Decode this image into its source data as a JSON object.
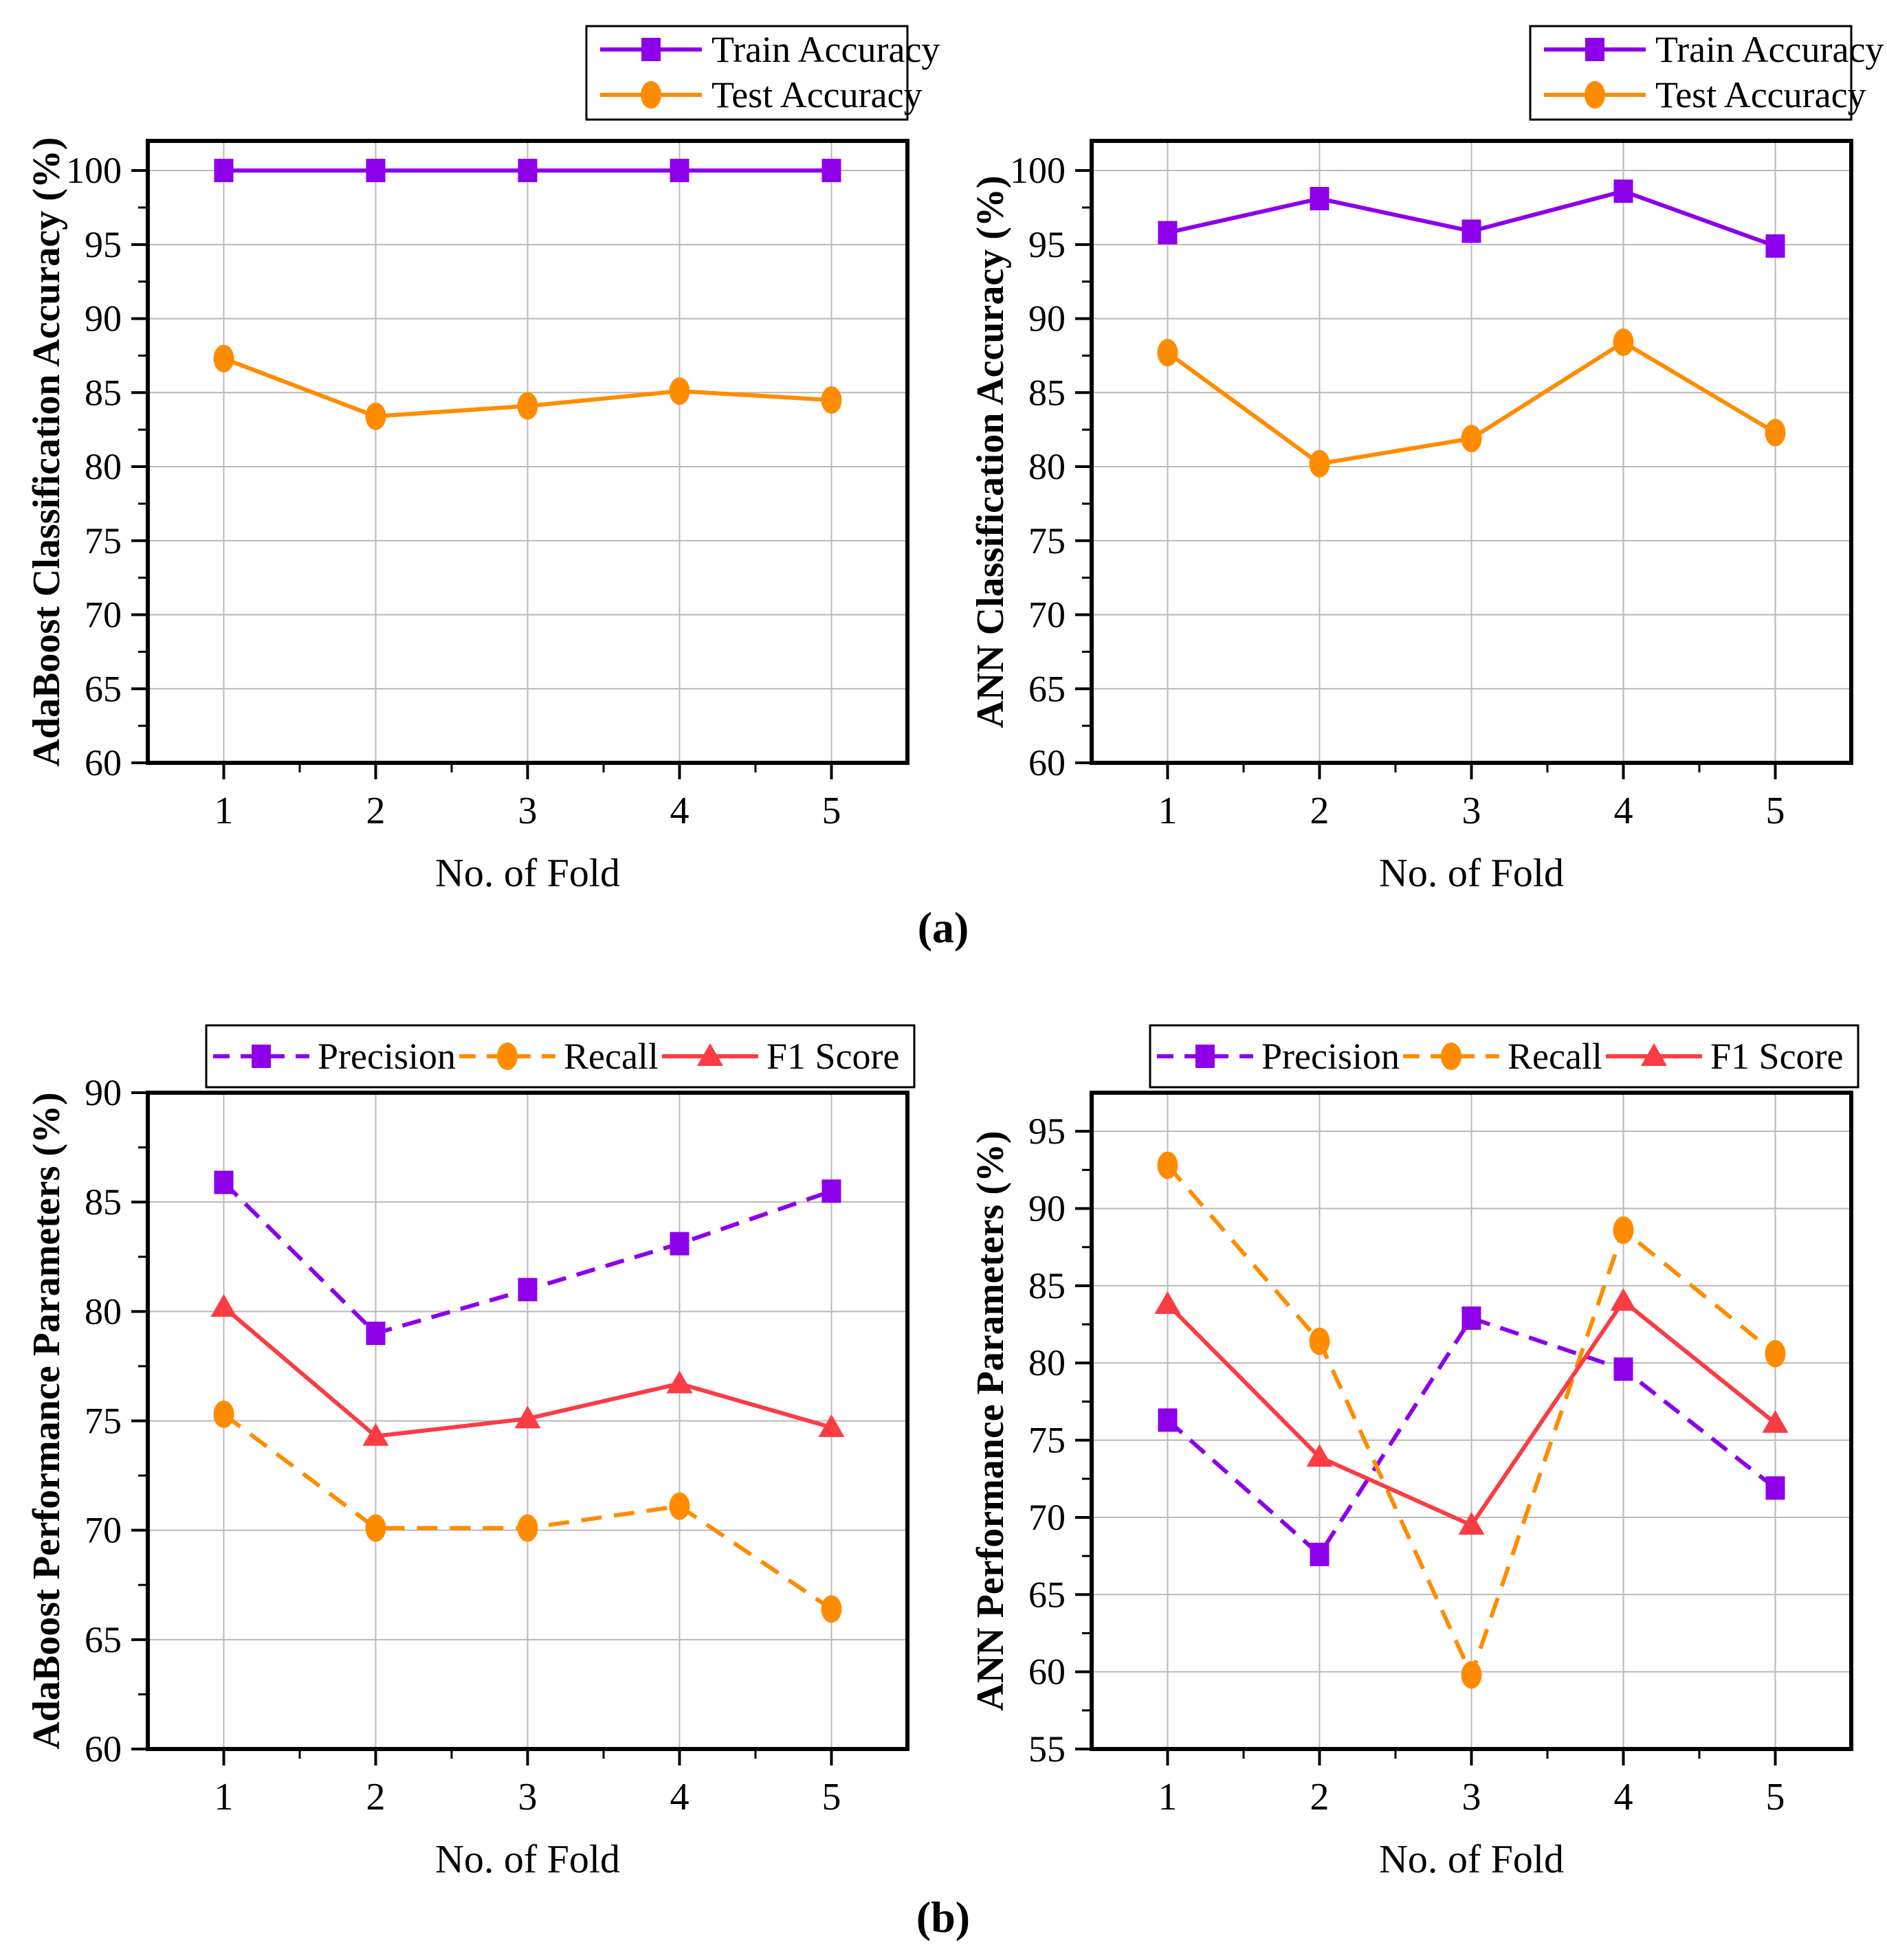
{
  "figure": {
    "panel_labels": [
      "(a)",
      "(b)"
    ],
    "colors": {
      "background": "#ffffff",
      "grid": "#b9b9b9",
      "axis": "#000000",
      "purple": "#8D00E9",
      "orange": "#FF8C00",
      "red": "#FA3C44"
    }
  },
  "chart_data": [
    {
      "type": "line",
      "name": "adaboost-accuracy",
      "panel": "a",
      "xlabel": "No. of Fold",
      "ylabel": "AdaBoost Classification Accuracy (%)",
      "x": [
        1,
        2,
        3,
        4,
        5
      ],
      "xticklabels": [
        "1",
        "2",
        "3",
        "4",
        "5"
      ],
      "xlim": [
        0.5,
        5.5
      ],
      "ylim": [
        60,
        102
      ],
      "yticks": [
        60,
        65,
        70,
        75,
        80,
        85,
        90,
        95,
        100
      ],
      "grid": true,
      "legend_position": "top-right-stacked",
      "series": [
        {
          "name": "Train Accuracy",
          "color": "#8D00E9",
          "marker": "square",
          "line": "solid",
          "values": [
            100,
            100,
            100,
            100,
            100
          ]
        },
        {
          "name": "Test Accuracy",
          "color": "#FF8C00",
          "marker": "circle",
          "line": "solid",
          "values": [
            87.3,
            83.4,
            84.1,
            85.1,
            84.5
          ]
        }
      ]
    },
    {
      "type": "line",
      "name": "ann-accuracy",
      "panel": "a",
      "xlabel": "No. of Fold",
      "ylabel": "ANN Classification Accuracy (%)",
      "x": [
        1,
        2,
        3,
        4,
        5
      ],
      "xticklabels": [
        "1",
        "2",
        "3",
        "4",
        "5"
      ],
      "xlim": [
        0.5,
        5.5
      ],
      "ylim": [
        60,
        102
      ],
      "yticks": [
        60,
        65,
        70,
        75,
        80,
        85,
        90,
        95,
        100
      ],
      "grid": true,
      "legend_position": "top-right-stacked",
      "series": [
        {
          "name": "Train Accuracy",
          "color": "#8D00E9",
          "marker": "square",
          "line": "solid",
          "values": [
            95.8,
            98.1,
            95.9,
            98.6,
            94.9
          ]
        },
        {
          "name": "Test Accuracy",
          "color": "#FF8C00",
          "marker": "circle",
          "line": "solid",
          "values": [
            87.7,
            80.2,
            81.9,
            88.4,
            82.3
          ]
        }
      ]
    },
    {
      "type": "line",
      "name": "adaboost-performance",
      "panel": "b",
      "xlabel": "No. of Fold",
      "ylabel": "AdaBoost Performance Parameters (%)",
      "x": [
        1,
        2,
        3,
        4,
        5
      ],
      "xticklabels": [
        "1",
        "2",
        "3",
        "4",
        "5"
      ],
      "xlim": [
        0.5,
        5.5
      ],
      "ylim": [
        60,
        90
      ],
      "yticks": [
        60,
        65,
        70,
        75,
        80,
        85,
        90
      ],
      "grid": true,
      "legend_position": "top-row",
      "series": [
        {
          "name": "Precision",
          "color": "#8D00E9",
          "marker": "square",
          "line": "dashed",
          "values": [
            85.9,
            79.0,
            81.0,
            83.1,
            85.5
          ]
        },
        {
          "name": "Recall",
          "color": "#FF8C00",
          "marker": "circle",
          "line": "dashed",
          "values": [
            75.3,
            70.1,
            70.1,
            71.1,
            66.4
          ]
        },
        {
          "name": "F1 Score",
          "color": "#FA3C44",
          "marker": "triangle",
          "line": "solid",
          "values": [
            80.2,
            74.3,
            75.1,
            76.7,
            74.7
          ]
        }
      ]
    },
    {
      "type": "line",
      "name": "ann-performance",
      "panel": "b",
      "xlabel": "No. of Fold",
      "ylabel": "ANN Performance Parameters (%)",
      "x": [
        1,
        2,
        3,
        4,
        5
      ],
      "xticklabels": [
        "1",
        "2",
        "3",
        "4",
        "5"
      ],
      "xlim": [
        0.5,
        5.5
      ],
      "ylim": [
        55,
        97.5
      ],
      "yticks": [
        55,
        60,
        65,
        70,
        75,
        80,
        85,
        90,
        95
      ],
      "grid": true,
      "legend_position": "top-row",
      "series": [
        {
          "name": "Precision",
          "color": "#8D00E9",
          "marker": "square",
          "line": "dashed",
          "values": [
            76.3,
            67.6,
            82.9,
            79.6,
            71.9
          ]
        },
        {
          "name": "Recall",
          "color": "#FF8C00",
          "marker": "circle",
          "line": "dashed",
          "values": [
            92.8,
            81.4,
            59.8,
            88.6,
            80.6
          ]
        },
        {
          "name": "F1 Score",
          "color": "#FA3C44",
          "marker": "triangle",
          "line": "solid",
          "values": [
            83.8,
            73.9,
            69.5,
            84.0,
            76.1
          ]
        }
      ]
    }
  ]
}
